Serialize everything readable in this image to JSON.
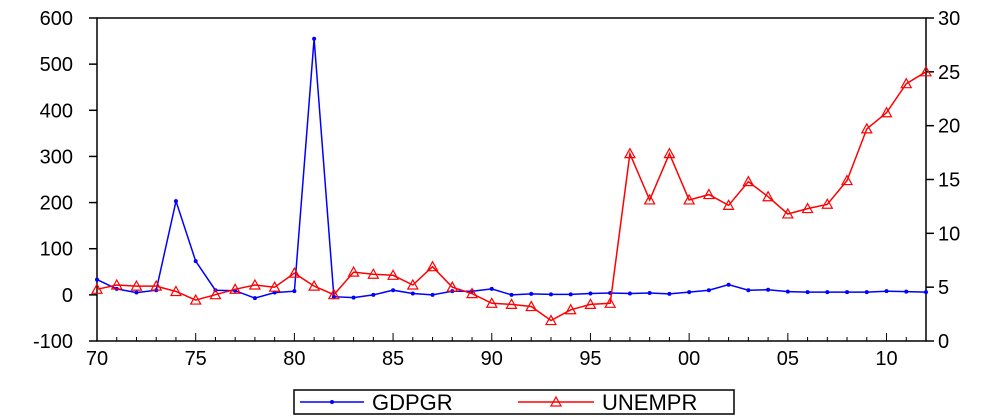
{
  "chart_data": {
    "type": "line",
    "title": "",
    "xlabel": "",
    "ylabel": "",
    "x": [
      1970,
      1971,
      1972,
      1973,
      1974,
      1975,
      1976,
      1977,
      1978,
      1979,
      1980,
      1981,
      1982,
      1983,
      1984,
      1985,
      1986,
      1987,
      1988,
      1989,
      1990,
      1991,
      1992,
      1993,
      1994,
      1995,
      1996,
      1997,
      1998,
      1999,
      2000,
      2001,
      2002,
      2003,
      2004,
      2005,
      2006,
      2007,
      2008,
      2009,
      2010,
      2011,
      2012
    ],
    "x_ticks": [
      {
        "value": 1970,
        "label": "70"
      },
      {
        "value": 1975,
        "label": "75"
      },
      {
        "value": 1980,
        "label": "80"
      },
      {
        "value": 1985,
        "label": "85"
      },
      {
        "value": 1990,
        "label": "90"
      },
      {
        "value": 1995,
        "label": "95"
      },
      {
        "value": 2000,
        "label": "00"
      },
      {
        "value": 2005,
        "label": "05"
      },
      {
        "value": 2010,
        "label": "10"
      }
    ],
    "xlim": [
      1970,
      2012
    ],
    "y_left": {
      "ylim": [
        -100,
        600
      ],
      "ticks": [
        -100,
        0,
        100,
        200,
        300,
        400,
        500,
        600
      ]
    },
    "y_right": {
      "ylim": [
        0,
        30
      ],
      "ticks": [
        0,
        5,
        10,
        15,
        20,
        25,
        30
      ]
    },
    "grid": false,
    "legend": {
      "position": "bottom-center"
    },
    "series": [
      {
        "name": "GDPGR",
        "axis": "left",
        "color": "#0000ff",
        "marker": "dot",
        "values": [
          33,
          13,
          5,
          10,
          203,
          73,
          10,
          9,
          -7,
          5,
          8,
          555,
          -4,
          -6,
          0,
          10,
          3,
          0,
          8,
          8,
          13,
          0,
          2,
          1,
          1,
          3,
          4,
          3,
          4,
          2,
          6,
          10,
          22,
          10,
          11,
          7,
          6,
          6,
          6,
          6,
          8,
          7,
          6
        ]
      },
      {
        "name": "UNEMPR",
        "axis": "right",
        "color": "#ff0000",
        "marker": "triangle",
        "values": [
          4.8,
          5.2,
          5.1,
          5.1,
          4.6,
          3.8,
          4.3,
          4.8,
          5.2,
          5.0,
          6.3,
          5.1,
          4.3,
          6.4,
          6.2,
          6.1,
          5.2,
          6.9,
          5.0,
          4.4,
          3.5,
          3.4,
          3.2,
          1.9,
          2.9,
          3.4,
          3.5,
          17.4,
          13.1,
          17.4,
          13.1,
          13.6,
          12.6,
          14.8,
          13.4,
          11.8,
          12.3,
          12.7,
          14.9,
          19.7,
          21.2,
          23.9,
          25.0
        ]
      }
    ]
  }
}
